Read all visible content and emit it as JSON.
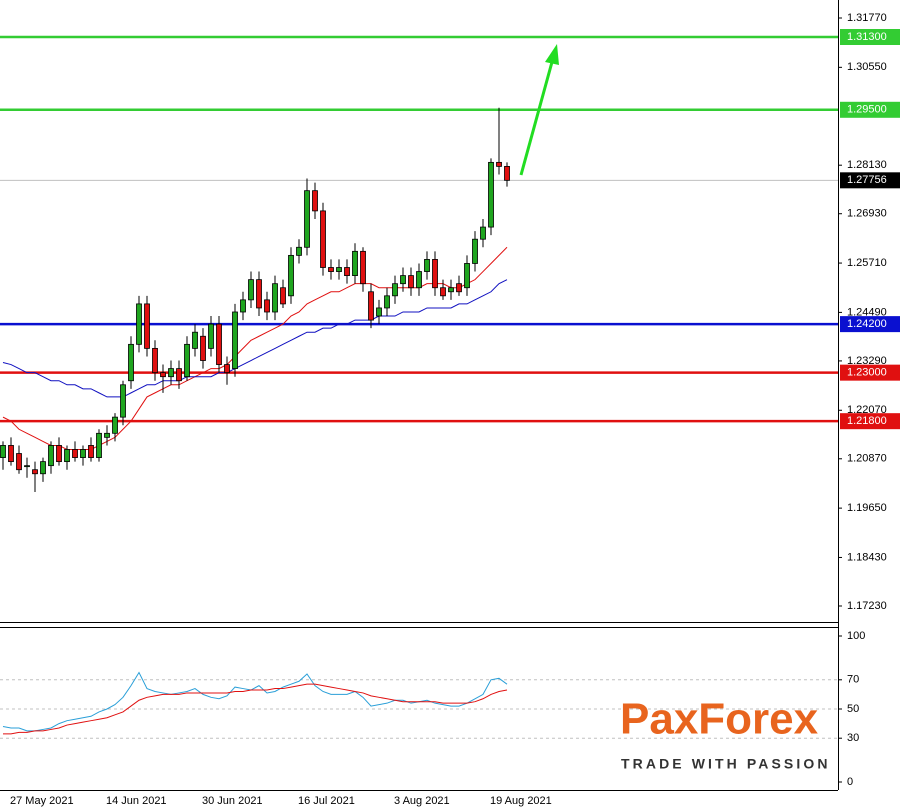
{
  "chart_data": [
    {
      "type": "candlestick",
      "categories": [
        null,
        null,
        "27 May 2021",
        null,
        null,
        null,
        null,
        null,
        null,
        null,
        null,
        null,
        null,
        null,
        "14 Jun 2021",
        null,
        null,
        null,
        null,
        null,
        null,
        null,
        null,
        null,
        null,
        null,
        "30 Jun 2021",
        null,
        null,
        null,
        null,
        null,
        null,
        null,
        null,
        null,
        null,
        null,
        "16 Jul 2021",
        null,
        null,
        null,
        null,
        null,
        null,
        null,
        null,
        null,
        null,
        null,
        "3 Aug 2021",
        null,
        null,
        null,
        null,
        null,
        null,
        null,
        null,
        null,
        null,
        null,
        "19 Aug 2021",
        null
      ],
      "open": [
        1.209,
        1.212,
        1.21,
        1.207,
        1.206,
        1.205,
        1.207,
        1.212,
        1.208,
        1.211,
        1.209,
        1.212,
        1.209,
        1.214,
        1.215,
        1.219,
        1.228,
        1.237,
        1.247,
        1.236,
        1.23,
        1.229,
        1.231,
        1.229,
        1.236,
        1.239,
        1.236,
        1.242,
        1.232,
        1.231,
        1.245,
        1.248,
        1.253,
        1.248,
        1.245,
        1.251,
        1.249,
        1.259,
        1.261,
        1.275,
        1.27,
        1.256,
        1.255,
        1.256,
        1.254,
        1.26,
        1.25,
        1.244,
        1.246,
        1.249,
        1.252,
        1.254,
        1.251,
        1.255,
        1.258,
        1.251,
        1.25,
        1.252,
        1.251,
        1.257,
        1.263,
        1.266,
        1.282,
        1.281
      ],
      "high": [
        1.213,
        1.214,
        1.212,
        1.209,
        1.208,
        1.209,
        1.213,
        1.214,
        1.212,
        1.213,
        1.212,
        1.214,
        1.216,
        1.217,
        1.22,
        1.228,
        1.239,
        1.249,
        1.249,
        1.238,
        1.232,
        1.233,
        1.233,
        1.239,
        1.242,
        1.241,
        1.244,
        1.244,
        1.234,
        1.247,
        1.25,
        1.255,
        1.255,
        1.25,
        1.254,
        1.253,
        1.261,
        1.263,
        1.278,
        1.277,
        1.272,
        1.258,
        1.258,
        1.258,
        1.262,
        1.261,
        1.252,
        1.248,
        1.251,
        1.254,
        1.256,
        1.256,
        1.257,
        1.26,
        1.26,
        1.253,
        1.253,
        1.254,
        1.259,
        1.265,
        1.268,
        1.283,
        1.2955,
        1.282
      ],
      "low": [
        1.206,
        1.207,
        1.205,
        1.204,
        1.2005,
        1.203,
        1.205,
        1.207,
        1.206,
        1.208,
        1.207,
        1.208,
        1.208,
        1.212,
        1.213,
        1.217,
        1.226,
        1.235,
        1.234,
        1.228,
        1.225,
        1.227,
        1.226,
        1.228,
        1.234,
        1.231,
        1.234,
        1.23,
        1.227,
        1.229,
        1.243,
        1.246,
        1.244,
        1.243,
        1.243,
        1.246,
        1.247,
        1.257,
        1.259,
        1.268,
        1.254,
        1.253,
        1.253,
        1.252,
        1.252,
        1.25,
        1.241,
        1.242,
        1.244,
        1.247,
        1.25,
        1.249,
        1.249,
        1.253,
        1.249,
        1.248,
        1.248,
        1.249,
        1.249,
        1.255,
        1.261,
        1.264,
        1.279,
        1.276
      ],
      "close": [
        1.212,
        1.208,
        1.206,
        1.207,
        1.205,
        1.208,
        1.212,
        1.208,
        1.211,
        1.209,
        1.211,
        1.209,
        1.215,
        1.215,
        1.219,
        1.227,
        1.237,
        1.247,
        1.236,
        1.23,
        1.229,
        1.231,
        1.228,
        1.237,
        1.24,
        1.233,
        1.242,
        1.232,
        1.23,
        1.245,
        1.248,
        1.253,
        1.246,
        1.245,
        1.252,
        1.247,
        1.259,
        1.261,
        1.275,
        1.27,
        1.256,
        1.255,
        1.256,
        1.254,
        1.26,
        1.252,
        1.243,
        1.246,
        1.249,
        1.252,
        1.254,
        1.251,
        1.255,
        1.258,
        1.251,
        1.249,
        1.251,
        1.25,
        1.257,
        1.263,
        1.266,
        1.282,
        1.281,
        1.27756
      ],
      "up_color": "#1fa51f",
      "down_color": "#e01010",
      "overlays": [
        {
          "color": "#e01010",
          "values": [
            1.219,
            1.218,
            1.216,
            1.215,
            1.214,
            1.213,
            1.212,
            1.212,
            1.211,
            1.211,
            1.211,
            1.211,
            1.212,
            1.213,
            1.214,
            1.216,
            1.218,
            1.221,
            1.224,
            1.225,
            1.226,
            1.227,
            1.227,
            1.228,
            1.229,
            1.23,
            1.231,
            1.231,
            1.232,
            1.234,
            1.236,
            1.238,
            1.239,
            1.24,
            1.241,
            1.242,
            1.244,
            1.245,
            1.247,
            1.248,
            1.249,
            1.25,
            1.25,
            1.251,
            1.252,
            1.252,
            1.252,
            1.251,
            1.251,
            1.251,
            1.251,
            1.251,
            1.251,
            1.252,
            1.252,
            1.252,
            1.251,
            1.251,
            1.252,
            1.253,
            1.255,
            1.257,
            1.259,
            1.261
          ]
        },
        {
          "color": "#1010c0",
          "values": [
            1.2325,
            1.232,
            1.231,
            1.23,
            1.23,
            1.229,
            1.228,
            1.228,
            1.227,
            1.227,
            1.226,
            1.226,
            1.225,
            1.224,
            1.224,
            1.224,
            1.225,
            1.226,
            1.227,
            1.227,
            1.228,
            1.228,
            1.228,
            1.229,
            1.229,
            1.229,
            1.229,
            1.23,
            1.23,
            1.231,
            1.232,
            1.233,
            1.234,
            1.235,
            1.236,
            1.237,
            1.238,
            1.239,
            1.24,
            1.24,
            1.241,
            1.241,
            1.242,
            1.242,
            1.243,
            1.243,
            1.243,
            1.244,
            1.244,
            1.244,
            1.245,
            1.245,
            1.245,
            1.246,
            1.246,
            1.246,
            1.246,
            1.247,
            1.247,
            1.248,
            1.249,
            1.25,
            1.252,
            1.253
          ]
        }
      ],
      "levels": [
        {
          "value": 1.313,
          "label": "1.31300",
          "color": "#33cc33"
        },
        {
          "value": 1.295,
          "label": "1.29500",
          "color": "#33cc33"
        },
        {
          "value": 1.242,
          "label": "1.24200",
          "color": "#0a10d0"
        },
        {
          "value": 1.23,
          "label": "1.23000",
          "color": "#e01010"
        },
        {
          "value": 1.218,
          "label": "1.21800",
          "color": "#e01010"
        }
      ],
      "last_price": 1.27756,
      "ylim": [
        1.16834,
        1.32215
      ],
      "yticks": [
        {
          "value": 1.3177,
          "label": "1.31770"
        },
        {
          "value": 1.3055,
          "label": "1.30550"
        },
        {
          "value": 1.2813,
          "label": "1.28130"
        },
        {
          "value": 1.2693,
          "label": "1.26930"
        },
        {
          "value": 1.2571,
          "label": "1.25710"
        },
        {
          "value": 1.2449,
          "label": "1.24490"
        },
        {
          "value": 1.2329,
          "label": "1.23290"
        },
        {
          "value": 1.2207,
          "label": "1.22070"
        },
        {
          "value": 1.2087,
          "label": "1.20870"
        },
        {
          "value": 1.1965,
          "label": "1.19650"
        },
        {
          "value": 1.1843,
          "label": "1.18430"
        },
        {
          "value": 1.1723,
          "label": "1.17230"
        }
      ]
    },
    {
      "type": "line",
      "ylim": [
        0,
        100
      ],
      "yticks": [
        100,
        70,
        50,
        30,
        0
      ],
      "grid": "dashed",
      "series": [
        {
          "color": "#2a9fd8",
          "values": [
            38,
            37,
            37,
            35,
            35,
            36,
            37,
            40,
            42,
            43,
            44,
            45,
            48,
            50,
            53,
            58,
            66,
            75,
            64,
            62,
            61,
            60,
            61,
            62,
            64,
            60,
            58,
            57,
            59,
            65,
            64,
            63,
            66,
            61,
            62,
            65,
            67,
            69,
            74,
            66,
            62,
            60,
            60,
            60,
            62,
            58,
            52,
            53,
            54,
            56,
            56,
            54,
            55,
            56,
            54,
            53,
            52,
            52,
            54,
            57,
            60,
            70,
            71,
            67
          ]
        },
        {
          "color": "#e01010",
          "values": [
            33,
            33,
            34,
            34,
            35,
            35,
            36,
            37,
            39,
            40,
            41,
            42,
            43,
            44,
            46,
            48,
            52,
            56,
            58,
            59,
            60,
            60,
            60,
            61,
            61,
            61,
            61,
            61,
            61,
            62,
            62,
            63,
            63,
            63,
            64,
            64,
            65,
            66,
            67,
            67,
            66,
            65,
            64,
            63,
            62,
            61,
            59,
            58,
            57,
            56,
            55,
            55,
            55,
            55,
            55,
            54,
            54,
            54,
            54,
            55,
            57,
            60,
            62,
            63
          ]
        }
      ]
    }
  ],
  "logo": {
    "brand": "PaxForex",
    "tagline": "TRADE WITH PASSION"
  }
}
